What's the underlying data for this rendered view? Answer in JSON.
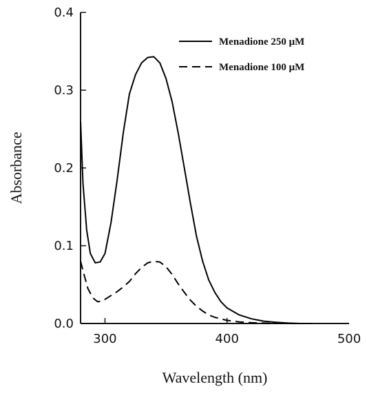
{
  "chart_data": {
    "type": "line",
    "xlabel": "Wavelength (nm)",
    "ylabel": "Absorbance",
    "xlim": [
      280,
      500
    ],
    "ylim": [
      0.0,
      0.4
    ],
    "x_ticks": [
      300,
      400,
      500
    ],
    "x_tick_labels": [
      "300",
      "400",
      "500"
    ],
    "y_ticks": [
      0.0,
      0.1,
      0.2,
      0.3,
      0.4
    ],
    "y_tick_labels": [
      "0.0",
      "0.1",
      "0.2",
      "0.3",
      "0.4"
    ],
    "grid": false,
    "legend_position": "top-right",
    "series": [
      {
        "name": "Menadione 250 μM",
        "style": "solid",
        "color": "#000000",
        "x": [
          280,
          282,
          285,
          288,
          292,
          296,
          300,
          305,
          310,
          315,
          320,
          325,
          330,
          335,
          340,
          345,
          350,
          355,
          360,
          365,
          370,
          375,
          380,
          385,
          390,
          395,
          400,
          410,
          420,
          430,
          440,
          450,
          460,
          470
        ],
        "y": [
          0.26,
          0.18,
          0.12,
          0.09,
          0.078,
          0.079,
          0.09,
          0.13,
          0.185,
          0.245,
          0.295,
          0.32,
          0.335,
          0.342,
          0.343,
          0.335,
          0.315,
          0.285,
          0.245,
          0.2,
          0.155,
          0.112,
          0.08,
          0.056,
          0.04,
          0.028,
          0.02,
          0.011,
          0.006,
          0.003,
          0.0015,
          0.0005,
          0.0,
          0.0
        ]
      },
      {
        "name": "Menadione 100 μM",
        "style": "dashed",
        "color": "#000000",
        "x": [
          280,
          283,
          286,
          290,
          294,
          298,
          302,
          306,
          310,
          315,
          320,
          325,
          330,
          335,
          340,
          345,
          350,
          355,
          360,
          365,
          370,
          375,
          380,
          385,
          390,
          400,
          410,
          420,
          430,
          440,
          450,
          460,
          470
        ],
        "y": [
          0.08,
          0.062,
          0.045,
          0.033,
          0.028,
          0.029,
          0.033,
          0.037,
          0.041,
          0.047,
          0.054,
          0.064,
          0.072,
          0.078,
          0.08,
          0.079,
          0.073,
          0.063,
          0.051,
          0.04,
          0.03,
          0.022,
          0.016,
          0.011,
          0.008,
          0.004,
          0.002,
          0.001,
          0.0005,
          0.0,
          0.0,
          0.0,
          0.0
        ]
      }
    ]
  }
}
